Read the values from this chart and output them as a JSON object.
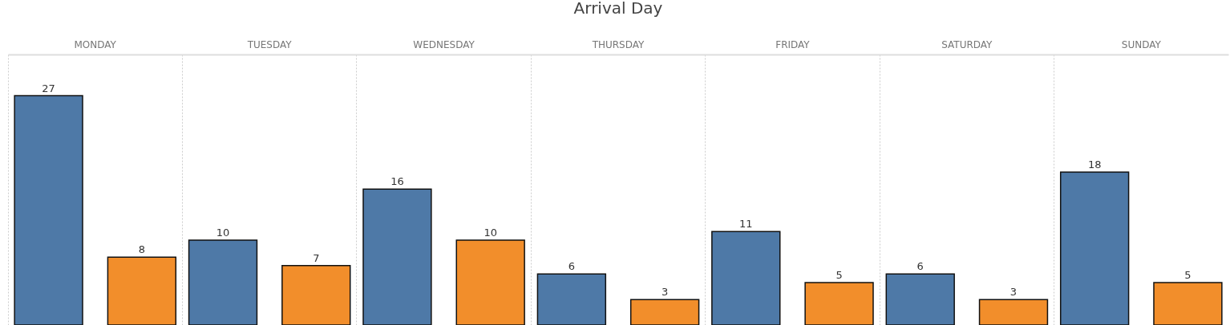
{
  "chart_data": {
    "type": "bar",
    "title": "Arrival Day",
    "categories": [
      "MONDAY",
      "TUESDAY",
      "WEDNESDAY",
      "THURSDAY",
      "FRIDAY",
      "SATURDAY",
      "SUNDAY"
    ],
    "series": [
      {
        "color": "#4e79a7",
        "values": [
          27,
          10,
          16,
          6,
          11,
          6,
          18
        ]
      },
      {
        "color": "#f28e2b",
        "values": [
          8,
          7,
          10,
          3,
          5,
          3,
          5
        ]
      }
    ],
    "relative": false,
    "data_labels": true,
    "grid": "x"
  }
}
